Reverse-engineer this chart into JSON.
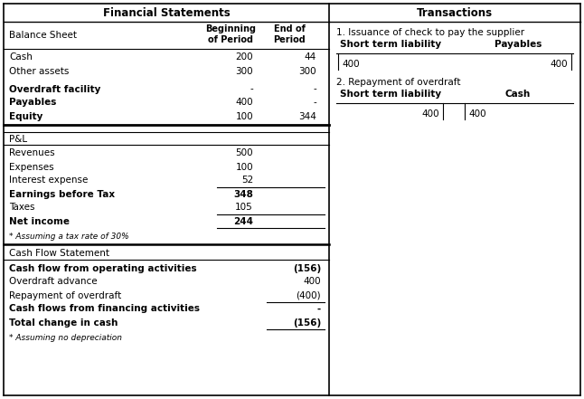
{
  "fig_width": 6.46,
  "fig_height": 4.41,
  "dpi": 100,
  "bg_color": "#ffffff",
  "left_header": "Financial Statements",
  "right_header": "Transactions",
  "bs_rows": [
    {
      "label": "Cash",
      "bold": false,
      "val1": "200",
      "val2": "44",
      "gap_before": false
    },
    {
      "label": "Other assets",
      "bold": false,
      "val1": "300",
      "val2": "300",
      "gap_before": false
    },
    {
      "label": "Overdraft facility",
      "bold": true,
      "val1": "-",
      "val2": "-",
      "gap_before": true
    },
    {
      "label": "Payables",
      "bold": true,
      "val1": "400",
      "val2": "-",
      "gap_before": false
    },
    {
      "label": "Equity",
      "bold": true,
      "val1": "100",
      "val2": "344",
      "gap_before": false
    }
  ],
  "pl_rows": [
    {
      "label": "Revenues",
      "bold": false,
      "val": "500",
      "gap_before": false,
      "line_before": false
    },
    {
      "label": "Expenses",
      "bold": false,
      "val": "100",
      "gap_before": false,
      "line_before": false
    },
    {
      "label": "Interest expense",
      "bold": false,
      "val": "52",
      "gap_before": false,
      "line_before": false
    },
    {
      "label": "Earnings before Tax",
      "bold": true,
      "val": "348",
      "gap_before": false,
      "line_before": true
    },
    {
      "label": "Taxes",
      "bold": false,
      "val": "105",
      "gap_before": false,
      "line_before": false
    },
    {
      "label": "Net income",
      "bold": true,
      "val": "244",
      "gap_before": false,
      "line_before": true
    }
  ],
  "pl_note": "* Assuming a tax rate of 30%",
  "cf_rows": [
    {
      "label": "Cash flow from operating activities",
      "bold": true,
      "val": "(156)",
      "line_before": false
    },
    {
      "label": "Overdraft advance",
      "bold": false,
      "val": "400",
      "line_before": false
    },
    {
      "label": "Repayment of overdraft",
      "bold": false,
      "val": "(400)",
      "line_before": false
    },
    {
      "label": "Cash flows from financing activities",
      "bold": true,
      "val": "-",
      "line_before": true
    },
    {
      "label": "Total change in cash",
      "bold": true,
      "val": "(156)",
      "line_before": false
    }
  ],
  "cf_note": "* Assuming no depreciation",
  "t1_title": "1. Issuance of check to pay the supplier",
  "t1_left_hdr": "Short term liability",
  "t1_right_hdr": "Payables",
  "t1_left_val": "400",
  "t1_left_side": "right",
  "t1_right_val": "400",
  "t1_right_side": "left",
  "t2_title": "2. Repayment of overdraft",
  "t2_left_hdr": "Short term liability",
  "t2_right_hdr": "Cash",
  "t2_left_val": "400",
  "t2_left_side": "left",
  "t2_right_val": "400",
  "t2_right_side": "right"
}
